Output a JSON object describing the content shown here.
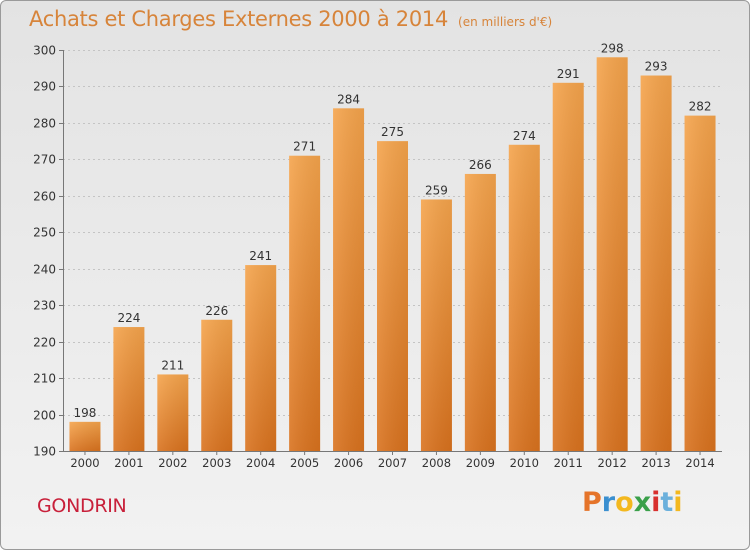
{
  "header": {
    "title": "Achats et Charges Externes 2000 à 2014",
    "unit": "(en milliers d'€)"
  },
  "footer": {
    "commune": "GONDRIN"
  },
  "logo": {
    "letters": [
      "P",
      "r",
      "o",
      "x",
      "i",
      "t",
      "i"
    ],
    "colors": [
      "#e5742a",
      "#3a8fd0",
      "#f3b81f",
      "#3aa04a",
      "#d8302e",
      "#6bb0dc",
      "#f3b81f"
    ]
  },
  "colors": {
    "bar": "#f09a3a",
    "title": "#d7843a",
    "commune": "#c8203a"
  },
  "chart_data": {
    "type": "bar",
    "categories": [
      "2000",
      "2001",
      "2002",
      "2003",
      "2004",
      "2005",
      "2006",
      "2007",
      "2008",
      "2009",
      "2010",
      "2011",
      "2012",
      "2013",
      "2014"
    ],
    "values": [
      198,
      224,
      211,
      226,
      241,
      271,
      284,
      275,
      259,
      266,
      274,
      291,
      298,
      293,
      282
    ],
    "ylim": [
      190,
      300
    ],
    "yticks": [
      190,
      200,
      210,
      220,
      230,
      240,
      250,
      260,
      270,
      280,
      290,
      300
    ],
    "grid": true
  }
}
